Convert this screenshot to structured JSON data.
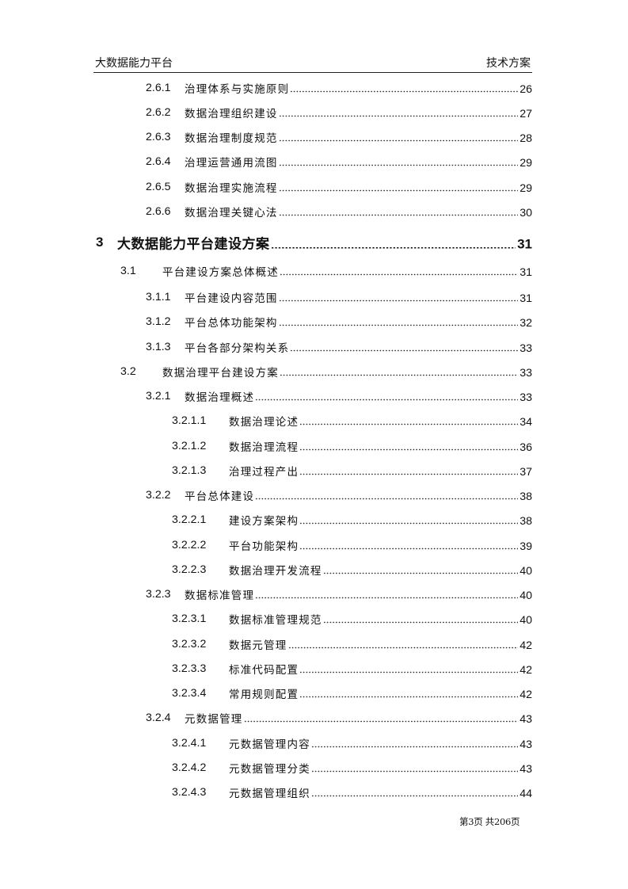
{
  "header": {
    "left": "大数据能力平台",
    "right": "技术方案"
  },
  "toc": [
    {
      "level": 3,
      "number": "2.6.1",
      "title": "治理体系与实施原则",
      "page": "26"
    },
    {
      "level": 3,
      "number": "2.6.2",
      "title": "数据治理组织建设",
      "page": "27"
    },
    {
      "level": 3,
      "number": "2.6.3",
      "title": "数据治理制度规范",
      "page": "28"
    },
    {
      "level": 3,
      "number": "2.6.4",
      "title": "治理运营通用流图",
      "page": "29"
    },
    {
      "level": 3,
      "number": "2.6.5",
      "title": "数据治理实施流程",
      "page": "29"
    },
    {
      "level": 3,
      "number": "2.6.6",
      "title": "数据治理关键心法",
      "page": "30"
    },
    {
      "level": 1,
      "number": "3",
      "title": "大数据能力平台建设方案",
      "page": "31"
    },
    {
      "level": 2,
      "number": "3.1",
      "title": "平台建设方案总体概述",
      "page": "31"
    },
    {
      "level": 3,
      "number": "3.1.1",
      "title": "平台建设内容范围",
      "page": "31"
    },
    {
      "level": 3,
      "number": "3.1.2",
      "title": "平台总体功能架构",
      "page": "32"
    },
    {
      "level": 3,
      "number": "3.1.3",
      "title": "平台各部分架构关系",
      "page": "33"
    },
    {
      "level": 2,
      "number": "3.2",
      "title": "数据治理平台建设方案",
      "page": "33"
    },
    {
      "level": 3,
      "number": "3.2.1",
      "title": "数据治理概述",
      "page": "33"
    },
    {
      "level": 4,
      "number": "3.2.1.1",
      "title": "数据治理论述",
      "page": "34"
    },
    {
      "level": 4,
      "number": "3.2.1.2",
      "title": "数据治理流程",
      "page": "36"
    },
    {
      "level": 4,
      "number": "3.2.1.3",
      "title": "治理过程产出",
      "page": "37"
    },
    {
      "level": 3,
      "number": "3.2.2",
      "title": "平台总体建设",
      "page": "38"
    },
    {
      "level": 4,
      "number": "3.2.2.1",
      "title": "建设方案架构",
      "page": "38"
    },
    {
      "level": 4,
      "number": "3.2.2.2",
      "title": "平台功能架构",
      "page": "39"
    },
    {
      "level": 4,
      "number": "3.2.2.3",
      "title": "数据治理开发流程",
      "page": "40"
    },
    {
      "level": 3,
      "number": "3.2.3",
      "title": "数据标准管理",
      "page": "40"
    },
    {
      "level": 4,
      "number": "3.2.3.1",
      "title": "数据标准管理规范",
      "page": "40"
    },
    {
      "level": 4,
      "number": "3.2.3.2",
      "title": "数据元管理",
      "page": "42"
    },
    {
      "level": 4,
      "number": "3.2.3.3",
      "title": "标准代码配置",
      "page": "42"
    },
    {
      "level": 4,
      "number": "3.2.3.4",
      "title": "常用规则配置",
      "page": "42"
    },
    {
      "level": 3,
      "number": "3.2.4",
      "title": "元数据管理",
      "page": "43"
    },
    {
      "level": 4,
      "number": "3.2.4.1",
      "title": "元数据管理内容",
      "page": "43"
    },
    {
      "level": 4,
      "number": "3.2.4.2",
      "title": "元数据管理分类",
      "page": "43"
    },
    {
      "level": 4,
      "number": "3.2.4.3",
      "title": "元数据管理组织",
      "page": "44"
    }
  ],
  "footer": "第3页  共206页"
}
